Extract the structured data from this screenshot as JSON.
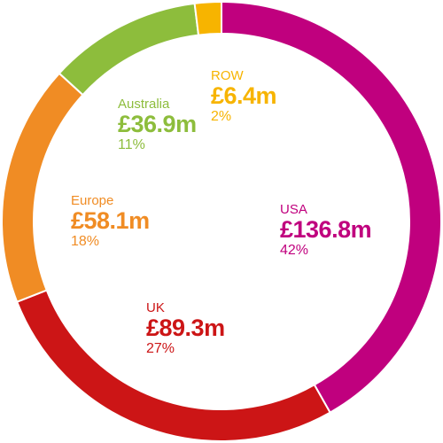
{
  "chart_data": {
    "type": "pie",
    "variant": "donut",
    "slices": [
      {
        "name": "USA",
        "value": 136.8,
        "value_label": "£136.8m",
        "percent_label": "42%",
        "color": "#c0007e"
      },
      {
        "name": "UK",
        "value": 89.3,
        "value_label": "£89.3m",
        "percent_label": "27%",
        "color": "#cc1516"
      },
      {
        "name": "Europe",
        "value": 58.1,
        "value_label": "£58.1m",
        "percent_label": "18%",
        "color": "#f08c24"
      },
      {
        "name": "Australia",
        "value": 36.9,
        "value_label": "£36.9m",
        "percent_label": "11%",
        "color": "#8dbd3c"
      },
      {
        "name": "ROW",
        "value": 6.4,
        "value_label": "£6.4m",
        "percent_label": "2%",
        "color": "#f7b400"
      }
    ],
    "legend": "none"
  }
}
